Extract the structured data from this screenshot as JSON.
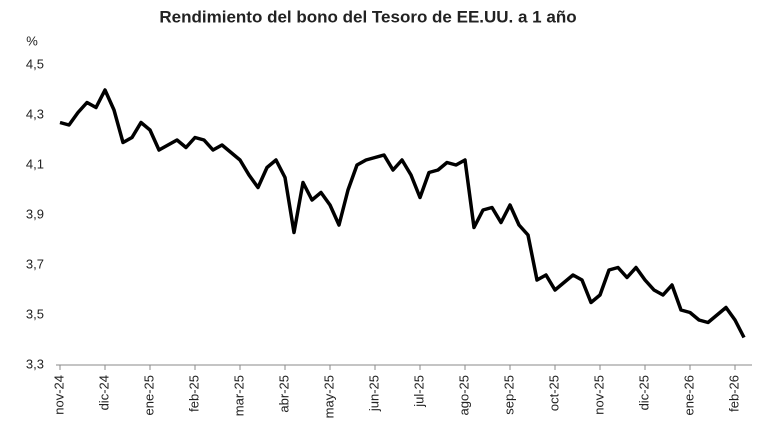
{
  "chart_data": {
    "type": "line",
    "title": "Rendimiento del bono del Tesoro de EE.UU. a 1 año",
    "y_label": "%",
    "categories": [
      "nov-24",
      null,
      null,
      null,
      null,
      "dic-24",
      null,
      null,
      null,
      null,
      "ene-25",
      null,
      null,
      null,
      null,
      "feb-25",
      null,
      null,
      null,
      null,
      "mar-25",
      null,
      null,
      null,
      null,
      "abr-25",
      null,
      null,
      null,
      null,
      "may-25",
      null,
      null,
      null,
      null,
      "jun-25",
      null,
      null,
      null,
      null,
      "jul-25",
      null,
      null,
      null,
      null,
      "ago-25",
      null,
      null,
      null,
      null,
      "sep-25",
      null,
      null,
      null,
      null,
      "oct-25",
      null,
      null,
      null,
      null,
      "nov-25",
      null,
      null,
      null,
      null,
      "dic-25",
      null,
      null,
      null,
      null,
      "ene-26",
      null,
      null,
      null,
      null,
      "feb-26",
      null
    ],
    "series": [
      {
        "color": "#000000",
        "values": [
          4.27,
          4.26,
          4.31,
          4.35,
          4.33,
          4.4,
          4.32,
          4.19,
          4.21,
          4.27,
          4.24,
          4.16,
          4.18,
          4.2,
          4.17,
          4.21,
          4.2,
          4.16,
          4.18,
          4.15,
          4.12,
          4.06,
          4.01,
          4.09,
          4.12,
          4.05,
          3.83,
          4.03,
          3.96,
          3.99,
          3.94,
          3.86,
          4.0,
          4.1,
          4.12,
          4.13,
          4.14,
          4.08,
          4.12,
          4.06,
          3.97,
          4.07,
          4.08,
          4.11,
          4.1,
          4.12,
          3.85,
          3.92,
          3.93,
          3.87,
          3.94,
          3.86,
          3.82,
          3.64,
          3.66,
          3.6,
          3.63,
          3.66,
          3.64,
          3.55,
          3.58,
          3.68,
          3.69,
          3.65,
          3.69,
          3.64,
          3.6,
          3.58,
          3.62,
          3.52,
          3.51,
          3.48,
          3.47,
          3.5,
          3.53,
          3.48,
          3.41
        ]
      }
    ],
    "ylim": [
      3.3,
      4.5
    ],
    "yticks": [
      {
        "value": 3.3,
        "label": "3,3"
      },
      {
        "value": 3.5,
        "label": "3,5"
      },
      {
        "value": 3.7,
        "label": "3,7"
      },
      {
        "value": 3.9,
        "label": "3,9"
      },
      {
        "value": 4.1,
        "label": "4,1"
      },
      {
        "value": 4.3,
        "label": "4,3"
      },
      {
        "value": 4.5,
        "label": "4,5"
      }
    ],
    "grid": false
  }
}
